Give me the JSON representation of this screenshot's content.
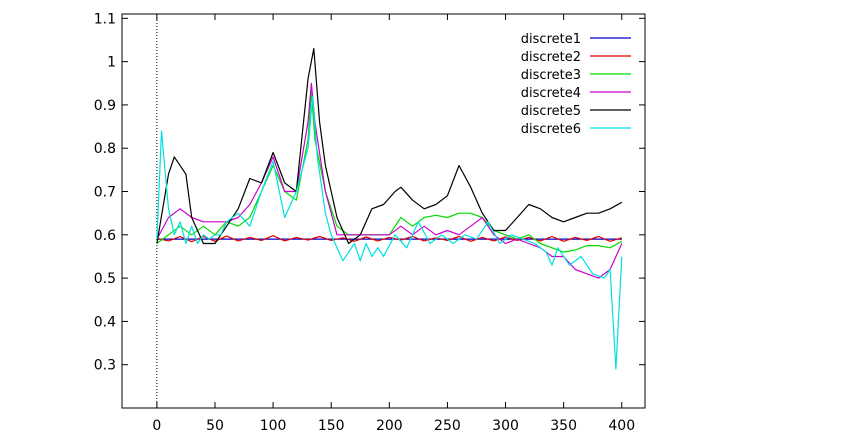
{
  "chart_data": {
    "type": "line",
    "xlim": [
      -30,
      420
    ],
    "ylim": [
      0.2,
      1.11
    ],
    "x_ticks": [
      0,
      50,
      100,
      150,
      200,
      250,
      300,
      350,
      400
    ],
    "y_ticks": [
      0.3,
      0.4,
      0.5,
      0.6,
      0.7,
      0.8,
      0.9,
      1,
      1.1
    ],
    "x_tick_labels": [
      "0",
      "50",
      "100",
      "150",
      "200",
      "250",
      "300",
      "350",
      "400"
    ],
    "y_tick_labels": [
      "0.3",
      "0.4",
      "0.5",
      "0.6",
      "0.7",
      "0.8",
      "0.9",
      "1",
      "1.1"
    ],
    "grid": false,
    "vertical_marker": {
      "x": 0,
      "style": "dotted",
      "color": "#000000"
    },
    "legend_position": "top-right",
    "series": [
      {
        "name": "discrete1",
        "color": "#0000cc",
        "points": [
          [
            0,
            0.59
          ],
          [
            400,
            0.59
          ]
        ]
      },
      {
        "name": "discrete2",
        "color": "#e00000",
        "points": [
          [
            0,
            0.592
          ],
          [
            10,
            0.586
          ],
          [
            20,
            0.596
          ],
          [
            30,
            0.584
          ],
          [
            40,
            0.596
          ],
          [
            50,
            0.585
          ],
          [
            60,
            0.597
          ],
          [
            70,
            0.586
          ],
          [
            80,
            0.594
          ],
          [
            90,
            0.587
          ],
          [
            100,
            0.598
          ],
          [
            110,
            0.586
          ],
          [
            120,
            0.594
          ],
          [
            130,
            0.588
          ],
          [
            140,
            0.596
          ],
          [
            150,
            0.587
          ],
          [
            160,
            0.593
          ],
          [
            170,
            0.585
          ],
          [
            180,
            0.595
          ],
          [
            190,
            0.586
          ],
          [
            200,
            0.594
          ],
          [
            210,
            0.588
          ],
          [
            220,
            0.596
          ],
          [
            230,
            0.586
          ],
          [
            240,
            0.593
          ],
          [
            250,
            0.587
          ],
          [
            260,
            0.596
          ],
          [
            270,
            0.585
          ],
          [
            280,
            0.594
          ],
          [
            290,
            0.586
          ],
          [
            300,
            0.595
          ],
          [
            310,
            0.587
          ],
          [
            320,
            0.594
          ],
          [
            330,
            0.586
          ],
          [
            340,
            0.596
          ],
          [
            350,
            0.585
          ],
          [
            360,
            0.594
          ],
          [
            370,
            0.587
          ],
          [
            380,
            0.596
          ],
          [
            390,
            0.585
          ],
          [
            400,
            0.593
          ]
        ]
      },
      {
        "name": "discrete3",
        "color": "#00dd00",
        "points": [
          [
            0,
            0.58
          ],
          [
            10,
            0.6
          ],
          [
            20,
            0.62
          ],
          [
            30,
            0.6
          ],
          [
            40,
            0.62
          ],
          [
            50,
            0.6
          ],
          [
            60,
            0.63
          ],
          [
            70,
            0.62
          ],
          [
            80,
            0.64
          ],
          [
            90,
            0.7
          ],
          [
            100,
            0.76
          ],
          [
            110,
            0.7
          ],
          [
            120,
            0.68
          ],
          [
            130,
            0.82
          ],
          [
            133,
            0.93
          ],
          [
            136,
            0.82
          ],
          [
            145,
            0.7
          ],
          [
            155,
            0.62
          ],
          [
            165,
            0.6
          ],
          [
            180,
            0.6
          ],
          [
            200,
            0.6
          ],
          [
            210,
            0.64
          ],
          [
            220,
            0.62
          ],
          [
            230,
            0.64
          ],
          [
            240,
            0.645
          ],
          [
            250,
            0.64
          ],
          [
            260,
            0.65
          ],
          [
            270,
            0.65
          ],
          [
            280,
            0.64
          ],
          [
            290,
            0.61
          ],
          [
            300,
            0.6
          ],
          [
            310,
            0.59
          ],
          [
            320,
            0.6
          ],
          [
            330,
            0.58
          ],
          [
            340,
            0.57
          ],
          [
            350,
            0.56
          ],
          [
            360,
            0.565
          ],
          [
            370,
            0.575
          ],
          [
            380,
            0.575
          ],
          [
            390,
            0.57
          ],
          [
            400,
            0.585
          ]
        ]
      },
      {
        "name": "discrete4",
        "color": "#cc00cc",
        "points": [
          [
            0,
            0.59
          ],
          [
            10,
            0.64
          ],
          [
            20,
            0.66
          ],
          [
            30,
            0.64
          ],
          [
            40,
            0.63
          ],
          [
            50,
            0.63
          ],
          [
            60,
            0.63
          ],
          [
            70,
            0.64
          ],
          [
            80,
            0.67
          ],
          [
            90,
            0.72
          ],
          [
            100,
            0.78
          ],
          [
            110,
            0.7
          ],
          [
            120,
            0.7
          ],
          [
            130,
            0.86
          ],
          [
            133,
            0.95
          ],
          [
            136,
            0.86
          ],
          [
            145,
            0.7
          ],
          [
            155,
            0.6
          ],
          [
            165,
            0.6
          ],
          [
            180,
            0.6
          ],
          [
            200,
            0.6
          ],
          [
            210,
            0.62
          ],
          [
            220,
            0.6
          ],
          [
            230,
            0.62
          ],
          [
            240,
            0.6
          ],
          [
            250,
            0.61
          ],
          [
            260,
            0.6
          ],
          [
            270,
            0.62
          ],
          [
            280,
            0.64
          ],
          [
            290,
            0.6
          ],
          [
            300,
            0.58
          ],
          [
            310,
            0.59
          ],
          [
            320,
            0.58
          ],
          [
            330,
            0.57
          ],
          [
            340,
            0.55
          ],
          [
            350,
            0.55
          ],
          [
            360,
            0.52
          ],
          [
            370,
            0.51
          ],
          [
            380,
            0.5
          ],
          [
            390,
            0.52
          ],
          [
            400,
            0.58
          ]
        ]
      },
      {
        "name": "discrete5",
        "color": "#000000",
        "points": [
          [
            0,
            0.58
          ],
          [
            10,
            0.74
          ],
          [
            15,
            0.78
          ],
          [
            25,
            0.74
          ],
          [
            30,
            0.64
          ],
          [
            40,
            0.58
          ],
          [
            50,
            0.58
          ],
          [
            60,
            0.62
          ],
          [
            70,
            0.66
          ],
          [
            80,
            0.73
          ],
          [
            90,
            0.72
          ],
          [
            100,
            0.79
          ],
          [
            110,
            0.72
          ],
          [
            120,
            0.7
          ],
          [
            130,
            0.96
          ],
          [
            135,
            1.03
          ],
          [
            140,
            0.86
          ],
          [
            145,
            0.76
          ],
          [
            155,
            0.64
          ],
          [
            165,
            0.58
          ],
          [
            175,
            0.6
          ],
          [
            185,
            0.66
          ],
          [
            195,
            0.67
          ],
          [
            205,
            0.7
          ],
          [
            210,
            0.71
          ],
          [
            220,
            0.68
          ],
          [
            230,
            0.66
          ],
          [
            240,
            0.67
          ],
          [
            250,
            0.69
          ],
          [
            260,
            0.76
          ],
          [
            270,
            0.71
          ],
          [
            280,
            0.65
          ],
          [
            290,
            0.61
          ],
          [
            300,
            0.61
          ],
          [
            310,
            0.64
          ],
          [
            320,
            0.67
          ],
          [
            330,
            0.66
          ],
          [
            340,
            0.64
          ],
          [
            350,
            0.63
          ],
          [
            360,
            0.64
          ],
          [
            370,
            0.65
          ],
          [
            380,
            0.65
          ],
          [
            390,
            0.66
          ],
          [
            400,
            0.675
          ]
        ]
      },
      {
        "name": "discrete6",
        "color": "#00e0e0",
        "points": [
          [
            0,
            0.59
          ],
          [
            4,
            0.84
          ],
          [
            10,
            0.66
          ],
          [
            15,
            0.6
          ],
          [
            20,
            0.63
          ],
          [
            25,
            0.58
          ],
          [
            30,
            0.62
          ],
          [
            35,
            0.58
          ],
          [
            40,
            0.6
          ],
          [
            45,
            0.59
          ],
          [
            50,
            0.6
          ],
          [
            55,
            0.6
          ],
          [
            60,
            0.63
          ],
          [
            70,
            0.65
          ],
          [
            80,
            0.62
          ],
          [
            90,
            0.7
          ],
          [
            100,
            0.77
          ],
          [
            110,
            0.64
          ],
          [
            120,
            0.7
          ],
          [
            130,
            0.8
          ],
          [
            134,
            0.92
          ],
          [
            138,
            0.78
          ],
          [
            145,
            0.65
          ],
          [
            150,
            0.6
          ],
          [
            160,
            0.54
          ],
          [
            170,
            0.58
          ],
          [
            175,
            0.54
          ],
          [
            180,
            0.58
          ],
          [
            185,
            0.55
          ],
          [
            190,
            0.57
          ],
          [
            195,
            0.55
          ],
          [
            205,
            0.6
          ],
          [
            215,
            0.57
          ],
          [
            225,
            0.63
          ],
          [
            235,
            0.58
          ],
          [
            245,
            0.6
          ],
          [
            255,
            0.58
          ],
          [
            265,
            0.6
          ],
          [
            275,
            0.59
          ],
          [
            285,
            0.63
          ],
          [
            295,
            0.58
          ],
          [
            305,
            0.6
          ],
          [
            315,
            0.59
          ],
          [
            325,
            0.58
          ],
          [
            335,
            0.56
          ],
          [
            340,
            0.53
          ],
          [
            345,
            0.57
          ],
          [
            355,
            0.53
          ],
          [
            365,
            0.55
          ],
          [
            375,
            0.51
          ],
          [
            385,
            0.5
          ],
          [
            390,
            0.52
          ],
          [
            395,
            0.29
          ],
          [
            400,
            0.55
          ]
        ]
      }
    ]
  }
}
